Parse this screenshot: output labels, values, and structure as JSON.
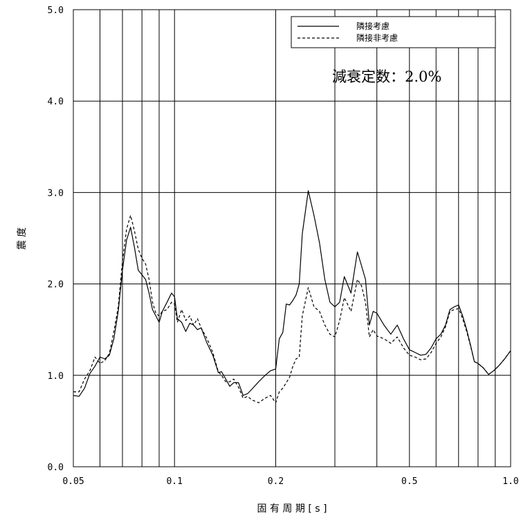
{
  "chart_data": {
    "type": "line",
    "xlabel": "固 有 周 期 [ s ]",
    "ylabel": "震 度",
    "xscale": "log",
    "xlim": [
      0.05,
      1.0
    ],
    "ylim": [
      0.0,
      5.0
    ],
    "x_ticks": [
      {
        "value": 0.05,
        "label": "0.05"
      },
      {
        "value": 0.1,
        "label": "0.1"
      },
      {
        "value": 0.2,
        "label": "0.2"
      },
      {
        "value": 0.5,
        "label": "0.5"
      },
      {
        "value": 1.0,
        "label": "1.0"
      }
    ],
    "y_ticks": [
      {
        "value": 0.0,
        "label": "0.0"
      },
      {
        "value": 1.0,
        "label": "1.0"
      },
      {
        "value": 2.0,
        "label": "2.0"
      },
      {
        "value": 3.0,
        "label": "3.0"
      },
      {
        "value": 4.0,
        "label": "4.0"
      },
      {
        "value": 5.0,
        "label": "5.0"
      }
    ],
    "x_grid": [
      0.06,
      0.07,
      0.08,
      0.09,
      0.1,
      0.2,
      0.3,
      0.4,
      0.5,
      0.6,
      0.7,
      0.8,
      0.9
    ],
    "y_grid": [
      1.0,
      2.0,
      3.0,
      4.0
    ],
    "legend_position": "top-right",
    "annotation": "減衰定数：2.0%",
    "series": [
      {
        "name": "隣接考慮",
        "style": "solid",
        "color": "#000000",
        "points": [
          [
            0.05,
            0.78
          ],
          [
            0.052,
            0.77
          ],
          [
            0.054,
            0.86
          ],
          [
            0.056,
            1.02
          ],
          [
            0.058,
            1.1
          ],
          [
            0.06,
            1.2
          ],
          [
            0.062,
            1.18
          ],
          [
            0.064,
            1.22
          ],
          [
            0.066,
            1.4
          ],
          [
            0.068,
            1.7
          ],
          [
            0.07,
            2.15
          ],
          [
            0.072,
            2.48
          ],
          [
            0.074,
            2.62
          ],
          [
            0.076,
            2.4
          ],
          [
            0.078,
            2.15
          ],
          [
            0.08,
            2.1
          ],
          [
            0.082,
            2.05
          ],
          [
            0.084,
            1.9
          ],
          [
            0.086,
            1.72
          ],
          [
            0.088,
            1.65
          ],
          [
            0.09,
            1.58
          ],
          [
            0.092,
            1.7
          ],
          [
            0.095,
            1.8
          ],
          [
            0.098,
            1.9
          ],
          [
            0.1,
            1.86
          ],
          [
            0.102,
            1.62
          ],
          [
            0.105,
            1.58
          ],
          [
            0.108,
            1.48
          ],
          [
            0.111,
            1.57
          ],
          [
            0.114,
            1.55
          ],
          [
            0.117,
            1.5
          ],
          [
            0.12,
            1.52
          ],
          [
            0.125,
            1.35
          ],
          [
            0.13,
            1.22
          ],
          [
            0.135,
            1.03
          ],
          [
            0.138,
            1.04
          ],
          [
            0.142,
            0.96
          ],
          [
            0.146,
            0.88
          ],
          [
            0.15,
            0.92
          ],
          [
            0.155,
            0.92
          ],
          [
            0.16,
            0.78
          ],
          [
            0.165,
            0.8
          ],
          [
            0.17,
            0.85
          ],
          [
            0.178,
            0.93
          ],
          [
            0.186,
            1.0
          ],
          [
            0.193,
            1.05
          ],
          [
            0.2,
            1.07
          ],
          [
            0.205,
            1.4
          ],
          [
            0.21,
            1.47
          ],
          [
            0.215,
            1.78
          ],
          [
            0.22,
            1.77
          ],
          [
            0.225,
            1.82
          ],
          [
            0.23,
            1.88
          ],
          [
            0.235,
            2.0
          ],
          [
            0.24,
            2.55
          ],
          [
            0.25,
            3.02
          ],
          [
            0.26,
            2.75
          ],
          [
            0.27,
            2.45
          ],
          [
            0.28,
            2.05
          ],
          [
            0.29,
            1.8
          ],
          [
            0.3,
            1.75
          ],
          [
            0.31,
            1.8
          ],
          [
            0.32,
            2.08
          ],
          [
            0.335,
            1.9
          ],
          [
            0.35,
            2.35
          ],
          [
            0.36,
            2.2
          ],
          [
            0.37,
            2.05
          ],
          [
            0.38,
            1.55
          ],
          [
            0.39,
            1.7
          ],
          [
            0.4,
            1.68
          ],
          [
            0.42,
            1.55
          ],
          [
            0.44,
            1.45
          ],
          [
            0.46,
            1.55
          ],
          [
            0.48,
            1.4
          ],
          [
            0.5,
            1.28
          ],
          [
            0.52,
            1.25
          ],
          [
            0.54,
            1.22
          ],
          [
            0.56,
            1.23
          ],
          [
            0.58,
            1.3
          ],
          [
            0.6,
            1.4
          ],
          [
            0.62,
            1.45
          ],
          [
            0.64,
            1.55
          ],
          [
            0.66,
            1.72
          ],
          [
            0.68,
            1.75
          ],
          [
            0.7,
            1.77
          ],
          [
            0.72,
            1.65
          ],
          [
            0.74,
            1.5
          ],
          [
            0.76,
            1.33
          ],
          [
            0.78,
            1.15
          ],
          [
            0.8,
            1.13
          ],
          [
            0.83,
            1.08
          ],
          [
            0.86,
            1.01
          ],
          [
            0.89,
            1.05
          ],
          [
            0.92,
            1.1
          ],
          [
            0.96,
            1.18
          ],
          [
            1.0,
            1.27
          ]
        ]
      },
      {
        "name": "隣接非考慮",
        "style": "dashed",
        "color": "#000000",
        "points": [
          [
            0.05,
            0.82
          ],
          [
            0.052,
            0.82
          ],
          [
            0.054,
            0.96
          ],
          [
            0.056,
            1.05
          ],
          [
            0.058,
            1.2
          ],
          [
            0.06,
            1.13
          ],
          [
            0.062,
            1.16
          ],
          [
            0.064,
            1.24
          ],
          [
            0.066,
            1.48
          ],
          [
            0.068,
            1.75
          ],
          [
            0.07,
            2.25
          ],
          [
            0.072,
            2.6
          ],
          [
            0.074,
            2.75
          ],
          [
            0.076,
            2.58
          ],
          [
            0.078,
            2.38
          ],
          [
            0.08,
            2.28
          ],
          [
            0.082,
            2.22
          ],
          [
            0.084,
            2.05
          ],
          [
            0.086,
            1.8
          ],
          [
            0.088,
            1.68
          ],
          [
            0.09,
            1.65
          ],
          [
            0.092,
            1.7
          ],
          [
            0.095,
            1.72
          ],
          [
            0.098,
            1.8
          ],
          [
            0.1,
            1.78
          ],
          [
            0.102,
            1.58
          ],
          [
            0.105,
            1.72
          ],
          [
            0.108,
            1.6
          ],
          [
            0.111,
            1.65
          ],
          [
            0.114,
            1.55
          ],
          [
            0.117,
            1.62
          ],
          [
            0.12,
            1.52
          ],
          [
            0.125,
            1.4
          ],
          [
            0.13,
            1.25
          ],
          [
            0.135,
            1.04
          ],
          [
            0.138,
            1.0
          ],
          [
            0.142,
            0.93
          ],
          [
            0.146,
            0.93
          ],
          [
            0.15,
            0.96
          ],
          [
            0.155,
            0.87
          ],
          [
            0.16,
            0.75
          ],
          [
            0.165,
            0.77
          ],
          [
            0.17,
            0.73
          ],
          [
            0.178,
            0.7
          ],
          [
            0.186,
            0.75
          ],
          [
            0.193,
            0.78
          ],
          [
            0.2,
            0.7
          ],
          [
            0.205,
            0.82
          ],
          [
            0.21,
            0.86
          ],
          [
            0.215,
            0.92
          ],
          [
            0.22,
            0.98
          ],
          [
            0.225,
            1.1
          ],
          [
            0.23,
            1.18
          ],
          [
            0.235,
            1.2
          ],
          [
            0.24,
            1.65
          ],
          [
            0.25,
            1.96
          ],
          [
            0.26,
            1.75
          ],
          [
            0.27,
            1.7
          ],
          [
            0.28,
            1.55
          ],
          [
            0.29,
            1.45
          ],
          [
            0.3,
            1.42
          ],
          [
            0.31,
            1.6
          ],
          [
            0.32,
            1.85
          ],
          [
            0.335,
            1.7
          ],
          [
            0.35,
            2.05
          ],
          [
            0.36,
            1.98
          ],
          [
            0.37,
            1.8
          ],
          [
            0.38,
            1.42
          ],
          [
            0.39,
            1.5
          ],
          [
            0.4,
            1.43
          ],
          [
            0.42,
            1.4
          ],
          [
            0.44,
            1.35
          ],
          [
            0.46,
            1.42
          ],
          [
            0.48,
            1.3
          ],
          [
            0.5,
            1.22
          ],
          [
            0.52,
            1.2
          ],
          [
            0.54,
            1.17
          ],
          [
            0.56,
            1.18
          ],
          [
            0.58,
            1.25
          ],
          [
            0.6,
            1.35
          ],
          [
            0.62,
            1.42
          ],
          [
            0.64,
            1.53
          ],
          [
            0.66,
            1.7
          ],
          [
            0.68,
            1.72
          ],
          [
            0.7,
            1.73
          ],
          [
            0.72,
            1.62
          ],
          [
            0.74,
            1.48
          ],
          [
            0.76,
            1.32
          ],
          [
            0.78,
            1.15
          ],
          [
            0.8,
            1.13
          ],
          [
            0.83,
            1.08
          ],
          [
            0.86,
            1.01
          ],
          [
            0.89,
            1.05
          ],
          [
            0.92,
            1.1
          ],
          [
            0.96,
            1.18
          ],
          [
            1.0,
            1.27
          ]
        ]
      }
    ]
  }
}
